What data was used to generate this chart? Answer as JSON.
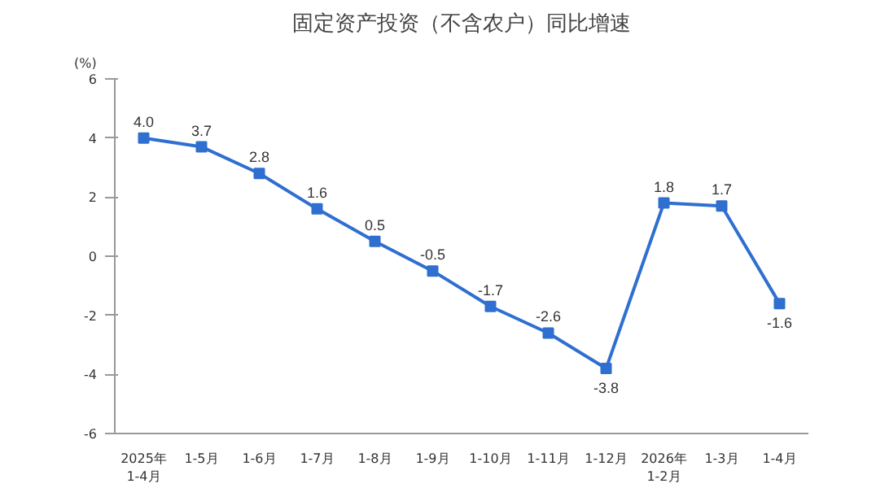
{
  "chart_data": {
    "type": "line",
    "title": "固定资产投资（不含农户）同比增速",
    "ylabel": "(%)",
    "categories": [
      "2025年\n1-4月",
      "1-5月",
      "1-6月",
      "1-7月",
      "1-8月",
      "1-9月",
      "1-10月",
      "1-11月",
      "1-12月",
      "2026年\n1-2月",
      "1-3月",
      "1-4月"
    ],
    "series": [
      {
        "color": "#2f6fd0",
        "values": [
          4.0,
          3.7,
          2.8,
          1.6,
          0.5,
          -0.5,
          -1.7,
          -2.6,
          -3.8,
          1.8,
          1.7,
          -1.6
        ],
        "value_labels": [
          "4.0",
          "3.7",
          "2.8",
          "1.6",
          "0.5",
          "-0.5",
          "-1.7",
          "-2.6",
          "-3.8",
          "1.8",
          "1.7",
          "-1.6"
        ]
      }
    ],
    "ylim": [
      -6,
      6
    ],
    "yticks": [
      -6,
      -4,
      -2,
      0,
      2,
      4,
      6
    ],
    "grid": false,
    "marker": "square",
    "line_style": "solid"
  }
}
